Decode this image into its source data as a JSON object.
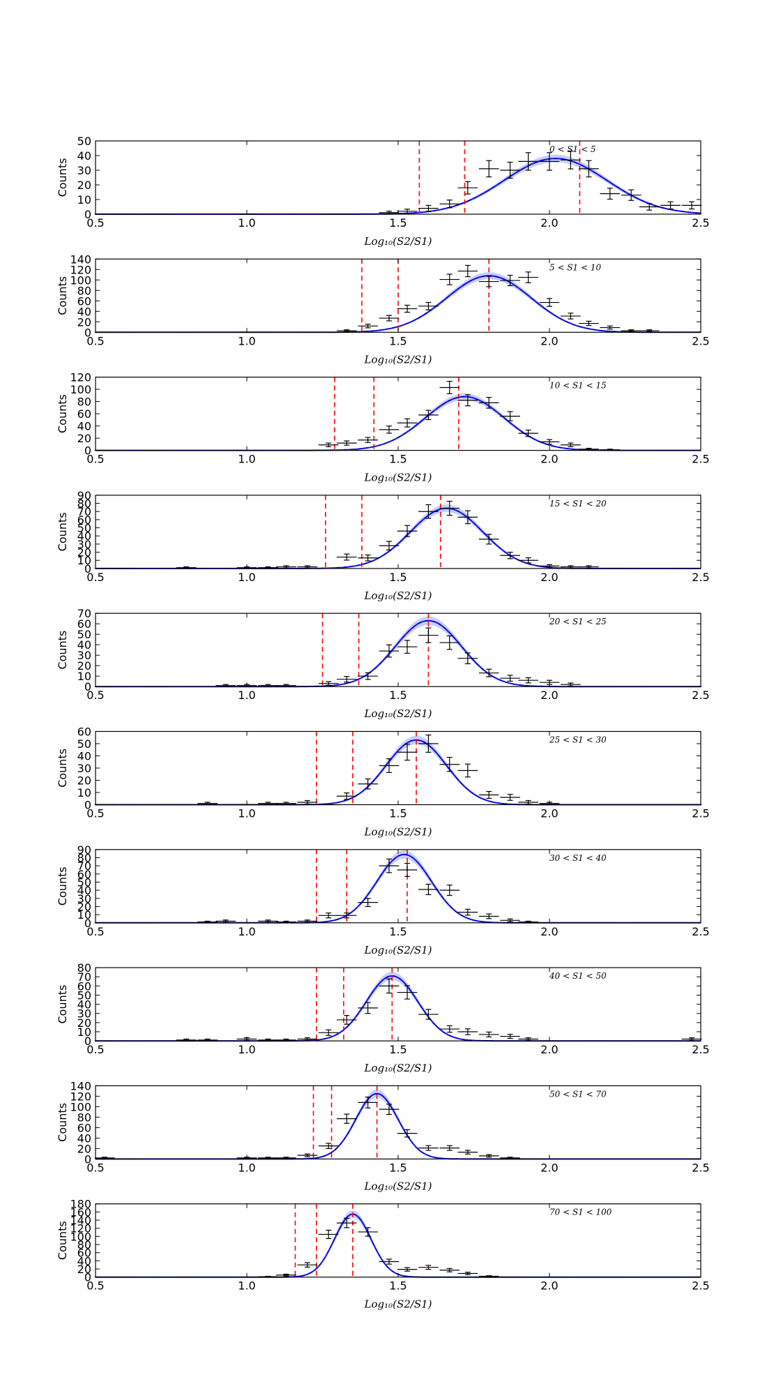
{
  "figure": {
    "xlabel": "Log₁₀(S2/S1)",
    "ylabel": "Counts",
    "x_ticks": [
      "0.5",
      "1.0",
      "1.5",
      "2.0",
      "2.5"
    ],
    "colors": {
      "data": "#000000",
      "fit": "#0000cc",
      "band": "#9aa8ff",
      "marker": "#ff0000"
    }
  },
  "chart_data": [
    {
      "type": "line",
      "label": "0 < S1 < 5",
      "xlim": [
        0.5,
        2.5
      ],
      "ylim": [
        0,
        50
      ],
      "yticks": [
        "0",
        "10",
        "20",
        "30",
        "40",
        "50"
      ],
      "vlines": [
        1.57,
        1.72,
        2.1
      ],
      "fit": {
        "mu": 2.02,
        "sigma": 0.17,
        "amp": 38,
        "floor": 0
      },
      "points": [
        [
          0.53,
          0
        ],
        [
          0.6,
          0
        ],
        [
          0.7,
          0
        ],
        [
          1.0,
          0
        ],
        [
          1.3,
          0
        ],
        [
          1.47,
          1
        ],
        [
          1.53,
          2
        ],
        [
          1.6,
          4
        ],
        [
          1.67,
          7
        ],
        [
          1.73,
          18
        ],
        [
          1.8,
          31
        ],
        [
          1.87,
          30
        ],
        [
          1.93,
          36
        ],
        [
          2.0,
          36
        ],
        [
          2.07,
          37
        ],
        [
          2.13,
          31
        ],
        [
          2.2,
          14
        ],
        [
          2.27,
          13
        ],
        [
          2.33,
          5
        ],
        [
          2.4,
          6
        ],
        [
          2.47,
          6
        ]
      ]
    },
    {
      "type": "line",
      "label": "5 < S1 < 10",
      "xlim": [
        0.5,
        2.5
      ],
      "ylim": [
        0,
        140
      ],
      "yticks": [
        "0",
        "20",
        "40",
        "60",
        "80",
        "100",
        "120",
        "140"
      ],
      "vlines": [
        1.38,
        1.5,
        1.8
      ],
      "fit": {
        "mu": 1.8,
        "sigma": 0.14,
        "amp": 108,
        "floor": 0
      },
      "points": [
        [
          0.53,
          0
        ],
        [
          0.6,
          0
        ],
        [
          0.8,
          0
        ],
        [
          1.0,
          0
        ],
        [
          1.2,
          0
        ],
        [
          1.33,
          3
        ],
        [
          1.4,
          12
        ],
        [
          1.47,
          27
        ],
        [
          1.53,
          45
        ],
        [
          1.6,
          50
        ],
        [
          1.67,
          101
        ],
        [
          1.73,
          117
        ],
        [
          1.8,
          97
        ],
        [
          1.87,
          99
        ],
        [
          1.93,
          105
        ],
        [
          2.0,
          57
        ],
        [
          2.07,
          31
        ],
        [
          2.13,
          17
        ],
        [
          2.2,
          9
        ],
        [
          2.27,
          3
        ],
        [
          2.33,
          3
        ],
        [
          2.4,
          0
        ]
      ]
    },
    {
      "type": "line",
      "label": "10 < S1 < 15",
      "xlim": [
        0.5,
        2.5
      ],
      "ylim": [
        0,
        120
      ],
      "yticks": [
        "0",
        "20",
        "40",
        "60",
        "80",
        "100",
        "120"
      ],
      "vlines": [
        1.29,
        1.42,
        1.7
      ],
      "fit": {
        "mu": 1.72,
        "sigma": 0.13,
        "amp": 88,
        "floor": 0
      },
      "points": [
        [
          0.53,
          0
        ],
        [
          0.7,
          0
        ],
        [
          1.0,
          0
        ],
        [
          1.2,
          0
        ],
        [
          1.27,
          9
        ],
        [
          1.33,
          12
        ],
        [
          1.4,
          17
        ],
        [
          1.47,
          34
        ],
        [
          1.53,
          45
        ],
        [
          1.6,
          58
        ],
        [
          1.67,
          103
        ],
        [
          1.73,
          82
        ],
        [
          1.8,
          78
        ],
        [
          1.87,
          56
        ],
        [
          1.93,
          28
        ],
        [
          2.0,
          14
        ],
        [
          2.07,
          9
        ],
        [
          2.13,
          2
        ],
        [
          2.2,
          1
        ]
      ]
    },
    {
      "type": "line",
      "label": "15 < S1 < 20",
      "xlim": [
        0.5,
        2.5
      ],
      "ylim": [
        0,
        90
      ],
      "yticks": [
        "0",
        "10",
        "20",
        "30",
        "40",
        "50",
        "60",
        "70",
        "80",
        "90"
      ],
      "vlines": [
        1.26,
        1.38,
        1.64
      ],
      "fit": {
        "mu": 1.66,
        "sigma": 0.12,
        "amp": 74,
        "floor": 0
      },
      "points": [
        [
          0.53,
          0
        ],
        [
          0.6,
          0
        ],
        [
          0.8,
          1
        ],
        [
          1.0,
          1
        ],
        [
          1.07,
          1
        ],
        [
          1.13,
          2
        ],
        [
          1.2,
          2
        ],
        [
          1.33,
          14
        ],
        [
          1.4,
          13
        ],
        [
          1.47,
          28
        ],
        [
          1.53,
          46
        ],
        [
          1.6,
          70
        ],
        [
          1.67,
          74
        ],
        [
          1.73,
          63
        ],
        [
          1.8,
          36
        ],
        [
          1.87,
          16
        ],
        [
          1.93,
          10
        ],
        [
          2.0,
          3
        ],
        [
          2.07,
          2
        ],
        [
          2.13,
          2
        ],
        [
          2.2,
          0
        ]
      ]
    },
    {
      "type": "line",
      "label": "20 < S1 < 25",
      "xlim": [
        0.5,
        2.5
      ],
      "ylim": [
        0,
        70
      ],
      "yticks": [
        "0",
        "10",
        "20",
        "30",
        "40",
        "50",
        "60",
        "70"
      ],
      "vlines": [
        1.25,
        1.37,
        1.6
      ],
      "fit": {
        "mu": 1.6,
        "sigma": 0.11,
        "amp": 63,
        "floor": 0
      },
      "points": [
        [
          0.53,
          0
        ],
        [
          0.7,
          0
        ],
        [
          0.93,
          1
        ],
        [
          1.0,
          1
        ],
        [
          1.07,
          1
        ],
        [
          1.13,
          1
        ],
        [
          1.2,
          0
        ],
        [
          1.27,
          3
        ],
        [
          1.33,
          7
        ],
        [
          1.4,
          10
        ],
        [
          1.47,
          34
        ],
        [
          1.53,
          38
        ],
        [
          1.6,
          49
        ],
        [
          1.67,
          42
        ],
        [
          1.73,
          27
        ],
        [
          1.8,
          13
        ],
        [
          1.87,
          8
        ],
        [
          1.93,
          6
        ],
        [
          2.0,
          4
        ],
        [
          2.07,
          2
        ],
        [
          2.47,
          0
        ]
      ]
    },
    {
      "type": "line",
      "label": "25 < S1 < 30",
      "xlim": [
        0.5,
        2.5
      ],
      "ylim": [
        0,
        60
      ],
      "yticks": [
        "0",
        "10",
        "20",
        "30",
        "40",
        "50",
        "60"
      ],
      "vlines": [
        1.23,
        1.35,
        1.56
      ],
      "fit": {
        "mu": 1.56,
        "sigma": 0.1,
        "amp": 53,
        "floor": 0
      },
      "points": [
        [
          0.53,
          0
        ],
        [
          0.7,
          0
        ],
        [
          0.87,
          1
        ],
        [
          1.0,
          0
        ],
        [
          1.07,
          1
        ],
        [
          1.13,
          1
        ],
        [
          1.2,
          2
        ],
        [
          1.27,
          0
        ],
        [
          1.33,
          7
        ],
        [
          1.4,
          17
        ],
        [
          1.47,
          32
        ],
        [
          1.53,
          43
        ],
        [
          1.6,
          50
        ],
        [
          1.67,
          33
        ],
        [
          1.73,
          28
        ],
        [
          1.8,
          8
        ],
        [
          1.87,
          6
        ],
        [
          1.93,
          2
        ],
        [
          2.0,
          1
        ],
        [
          2.47,
          0
        ]
      ]
    },
    {
      "type": "line",
      "label": "30 < S1 < 40",
      "xlim": [
        0.5,
        2.5
      ],
      "ylim": [
        0,
        90
      ],
      "yticks": [
        "0",
        "10",
        "20",
        "30",
        "40",
        "50",
        "60",
        "70",
        "80",
        "90"
      ],
      "vlines": [
        1.23,
        1.33,
        1.53
      ],
      "fit": {
        "mu": 1.52,
        "sigma": 0.09,
        "amp": 84,
        "floor": 0
      },
      "points": [
        [
          0.53,
          0
        ],
        [
          0.6,
          0
        ],
        [
          0.67,
          0
        ],
        [
          0.87,
          1
        ],
        [
          0.93,
          2
        ],
        [
          1.0,
          0
        ],
        [
          1.07,
          2
        ],
        [
          1.13,
          1
        ],
        [
          1.2,
          2
        ],
        [
          1.27,
          9
        ],
        [
          1.33,
          9
        ],
        [
          1.4,
          25
        ],
        [
          1.47,
          70
        ],
        [
          1.53,
          65
        ],
        [
          1.6,
          41
        ],
        [
          1.67,
          40
        ],
        [
          1.73,
          13
        ],
        [
          1.8,
          8
        ],
        [
          1.87,
          3
        ],
        [
          1.93,
          1
        ],
        [
          2.0,
          0
        ]
      ]
    },
    {
      "type": "line",
      "label": "40 < S1 < 50",
      "xlim": [
        0.5,
        2.5
      ],
      "ylim": [
        0,
        80
      ],
      "yticks": [
        "0",
        "10",
        "20",
        "30",
        "40",
        "50",
        "60",
        "70",
        "80"
      ],
      "vlines": [
        1.23,
        1.32,
        1.48
      ],
      "fit": {
        "mu": 1.48,
        "sigma": 0.085,
        "amp": 71,
        "floor": 0
      },
      "points": [
        [
          0.53,
          0
        ],
        [
          0.8,
          1
        ],
        [
          0.87,
          1
        ],
        [
          1.0,
          2
        ],
        [
          1.07,
          1
        ],
        [
          1.13,
          1
        ],
        [
          1.2,
          2
        ],
        [
          1.27,
          9
        ],
        [
          1.33,
          23
        ],
        [
          1.4,
          36
        ],
        [
          1.47,
          60
        ],
        [
          1.53,
          53
        ],
        [
          1.6,
          29
        ],
        [
          1.67,
          13
        ],
        [
          1.73,
          10
        ],
        [
          1.8,
          7
        ],
        [
          1.87,
          5
        ],
        [
          1.93,
          2
        ],
        [
          2.0,
          0
        ],
        [
          2.47,
          2
        ]
      ]
    },
    {
      "type": "line",
      "label": "50 < S1 < 70",
      "xlim": [
        0.5,
        2.5
      ],
      "ylim": [
        0,
        140
      ],
      "yticks": [
        "0",
        "20",
        "40",
        "60",
        "80",
        "100",
        "120",
        "140"
      ],
      "vlines": [
        1.22,
        1.28,
        1.43
      ],
      "fit": {
        "mu": 1.43,
        "sigma": 0.07,
        "amp": 125,
        "floor": 0
      },
      "points": [
        [
          0.53,
          2
        ],
        [
          0.6,
          0
        ],
        [
          1.0,
          2
        ],
        [
          1.07,
          2
        ],
        [
          1.13,
          2
        ],
        [
          1.2,
          7
        ],
        [
          1.27,
          25
        ],
        [
          1.33,
          77
        ],
        [
          1.4,
          108
        ],
        [
          1.47,
          95
        ],
        [
          1.53,
          49
        ],
        [
          1.6,
          21
        ],
        [
          1.67,
          21
        ],
        [
          1.73,
          13
        ],
        [
          1.8,
          6
        ],
        [
          1.87,
          2
        ],
        [
          1.93,
          0
        ]
      ]
    },
    {
      "type": "line",
      "label": "70 < S1 < 100",
      "xlim": [
        0.5,
        2.5
      ],
      "ylim": [
        0,
        180
      ],
      "yticks": [
        "0",
        "20",
        "40",
        "60",
        "80",
        "100",
        "120",
        "140",
        "160",
        "180"
      ],
      "vlines": [
        1.16,
        1.23,
        1.35
      ],
      "fit": {
        "mu": 1.35,
        "sigma": 0.06,
        "amp": 155,
        "floor": 0
      },
      "points": [
        [
          0.53,
          0
        ],
        [
          0.6,
          0
        ],
        [
          0.8,
          0
        ],
        [
          1.0,
          0
        ],
        [
          1.07,
          1
        ],
        [
          1.13,
          5
        ],
        [
          1.2,
          30
        ],
        [
          1.27,
          105
        ],
        [
          1.33,
          133
        ],
        [
          1.4,
          111
        ],
        [
          1.47,
          38
        ],
        [
          1.53,
          19
        ],
        [
          1.6,
          24
        ],
        [
          1.67,
          17
        ],
        [
          1.73,
          9
        ],
        [
          1.8,
          2
        ],
        [
          1.87,
          0
        ]
      ]
    }
  ]
}
